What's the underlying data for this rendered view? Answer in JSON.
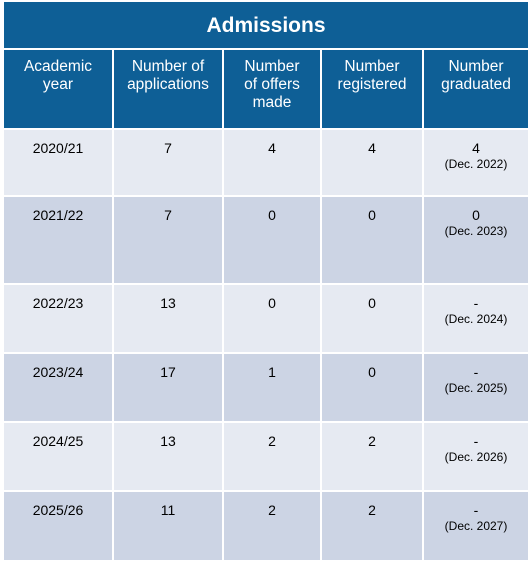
{
  "title": "Admissions",
  "headers": [
    [
      "Academic",
      "year"
    ],
    [
      "Number of",
      "applications"
    ],
    [
      "Number",
      "of offers",
      "made"
    ],
    [
      "Number",
      "registered"
    ],
    [
      "Number",
      "graduated"
    ]
  ],
  "rows": [
    {
      "year": "2020/21",
      "applications": "7",
      "offers": "4",
      "registered": "4",
      "graduated": "4",
      "grad_date": "(Dec. 2022)"
    },
    {
      "year": "2021/22",
      "applications": "7",
      "offers": "0",
      "registered": "0",
      "graduated": "0",
      "grad_date": "(Dec. 2023)"
    },
    {
      "year": "2022/23",
      "applications": "13",
      "offers": "0",
      "registered": "0",
      "graduated": "-",
      "grad_date": "(Dec. 2024)"
    },
    {
      "year": "2023/24",
      "applications": "17",
      "offers": "1",
      "registered": "0",
      "graduated": "-",
      "grad_date": "(Dec. 2025)"
    },
    {
      "year": "2024/25",
      "applications": "13",
      "offers": "2",
      "registered": "2",
      "graduated": "-",
      "grad_date": "(Dec. 2026)"
    },
    {
      "year": "2025/26",
      "applications": "11",
      "offers": "2",
      "registered": "2",
      "graduated": "-",
      "grad_date": "(Dec. 2027)"
    }
  ],
  "colors": {
    "header_bg": "#0e5f96",
    "row_light": "#e6eaf2",
    "row_dark": "#ccd4e4"
  }
}
